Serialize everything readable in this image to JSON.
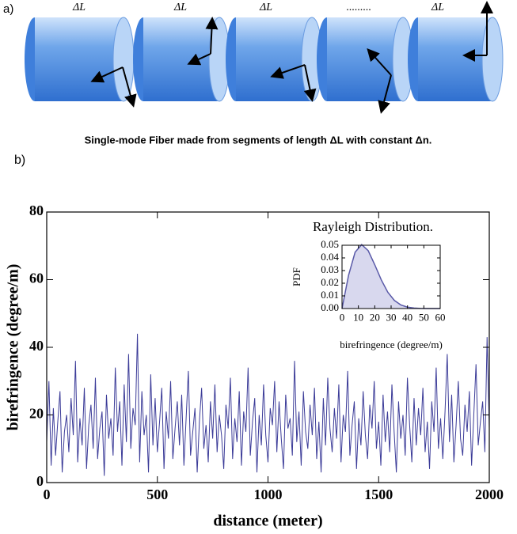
{
  "diagram": {
    "panel_a_label": "a)",
    "segment_labels": [
      "ΔL",
      "ΔL",
      "ΔL",
      "ΔL"
    ],
    "ellipsis": ".........",
    "caption": "Single-mode Fiber made from segments of length ΔL with constant Δn.",
    "panel_b_label": "b)"
  },
  "chart_data": [
    {
      "type": "line",
      "xlabel": "distance (meter)",
      "ylabel": "birefringence (degree/m)",
      "color": "#3b3b98",
      "xlim": [
        0,
        2000
      ],
      "ylim": [
        0,
        80
      ],
      "xticks": [
        0,
        500,
        1000,
        1500,
        2000
      ],
      "yticks": [
        0,
        20,
        40,
        60,
        80
      ],
      "x": [
        0,
        10,
        20,
        30,
        40,
        50,
        60,
        70,
        80,
        90,
        100,
        110,
        120,
        130,
        140,
        150,
        160,
        170,
        180,
        190,
        200,
        210,
        220,
        230,
        240,
        250,
        260,
        270,
        280,
        290,
        300,
        310,
        320,
        330,
        340,
        350,
        360,
        370,
        380,
        390,
        400,
        410,
        420,
        430,
        440,
        450,
        460,
        470,
        480,
        490,
        500,
        510,
        520,
        530,
        540,
        550,
        560,
        570,
        580,
        590,
        600,
        610,
        620,
        630,
        640,
        650,
        660,
        670,
        680,
        690,
        700,
        710,
        720,
        730,
        740,
        750,
        760,
        770,
        780,
        790,
        800,
        810,
        820,
        830,
        840,
        850,
        860,
        870,
        880,
        890,
        900,
        910,
        920,
        930,
        940,
        950,
        960,
        970,
        980,
        990,
        1000,
        1010,
        1020,
        1030,
        1040,
        1050,
        1060,
        1070,
        1080,
        1090,
        1100,
        1110,
        1120,
        1130,
        1140,
        1150,
        1160,
        1170,
        1180,
        1190,
        1200,
        1210,
        1220,
        1230,
        1240,
        1250,
        1260,
        1270,
        1280,
        1290,
        1300,
        1310,
        1320,
        1330,
        1340,
        1350,
        1360,
        1370,
        1380,
        1390,
        1400,
        1410,
        1420,
        1430,
        1440,
        1450,
        1460,
        1470,
        1480,
        1490,
        1500,
        1510,
        1520,
        1530,
        1540,
        1550,
        1560,
        1570,
        1580,
        1590,
        1600,
        1610,
        1620,
        1630,
        1640,
        1650,
        1660,
        1670,
        1680,
        1690,
        1700,
        1710,
        1720,
        1730,
        1740,
        1750,
        1760,
        1770,
        1780,
        1790,
        1800,
        1810,
        1820,
        1830,
        1840,
        1850,
        1860,
        1870,
        1880,
        1890,
        1900,
        1910,
        1920,
        1930,
        1940,
        1950,
        1960,
        1970,
        1980,
        1990,
        2000
      ],
      "values": [
        12,
        30,
        5,
        22,
        8,
        18,
        27,
        3,
        15,
        20,
        9,
        25,
        14,
        36,
        6,
        19,
        11,
        28,
        4,
        17,
        23,
        10,
        31,
        7,
        16,
        21,
        2,
        26,
        13,
        19,
        8,
        34,
        15,
        24,
        5,
        29,
        12,
        38,
        10,
        22,
        17,
        44,
        6,
        27,
        14,
        20,
        3,
        32,
        11,
        25,
        9,
        18,
        28,
        4,
        21,
        13,
        30,
        7,
        16,
        24,
        11,
        26,
        5,
        19,
        33,
        8,
        15,
        22,
        3,
        18,
        28,
        10,
        17,
        6,
        24,
        13,
        29,
        9,
        20,
        14,
        4,
        23,
        16,
        31,
        7,
        19,
        12,
        27,
        5,
        21,
        15,
        34,
        8,
        18,
        25,
        3,
        20,
        11,
        29,
        14,
        6,
        22,
        17,
        30,
        9,
        24,
        13,
        4,
        26,
        16,
        19,
        8,
        36,
        12,
        21,
        5,
        27,
        15,
        10,
        23,
        14,
        28,
        7,
        18,
        3,
        25,
        11,
        31,
        16,
        9,
        22,
        13,
        29,
        6,
        20,
        15,
        33,
        8,
        17,
        24,
        4,
        19,
        11,
        27,
        14,
        7,
        23,
        16,
        30,
        10,
        18,
        5,
        26,
        12,
        21,
        9,
        29,
        15,
        3,
        24,
        13,
        20,
        8,
        31,
        17,
        6,
        25,
        11,
        22,
        14,
        28,
        9,
        18,
        4,
        24,
        15,
        34,
        10,
        19,
        7,
        21,
        38,
        12,
        26,
        6,
        17,
        30,
        13,
        8,
        23,
        15,
        27,
        5,
        20,
        35,
        11,
        18,
        24,
        9,
        43,
        16
      ]
    },
    {
      "type": "area",
      "title": "Rayleigh Distribution.",
      "xlabel": "birefringence (degree/m)",
      "ylabel": "PDF",
      "color": "#5a5aa8",
      "fill_color": "#d8d8ee",
      "xlim": [
        0,
        60
      ],
      "ylim": [
        0,
        0.05
      ],
      "xticks": [
        0,
        10,
        20,
        30,
        40,
        50,
        60
      ],
      "yticks": [
        {
          "value": 0,
          "label": "0.00"
        },
        0.01,
        0.02,
        0.03,
        0.04,
        0.05
      ],
      "x": [
        0,
        4,
        8,
        12,
        16,
        20,
        24,
        28,
        32,
        36,
        40,
        44,
        48,
        52,
        56,
        60
      ],
      "values": [
        0,
        0.0263,
        0.0445,
        0.0505,
        0.0457,
        0.0346,
        0.0226,
        0.0128,
        0.0064,
        0.0028,
        0.0011,
        0.0004,
        0.0001,
        0,
        0,
        0
      ]
    }
  ]
}
